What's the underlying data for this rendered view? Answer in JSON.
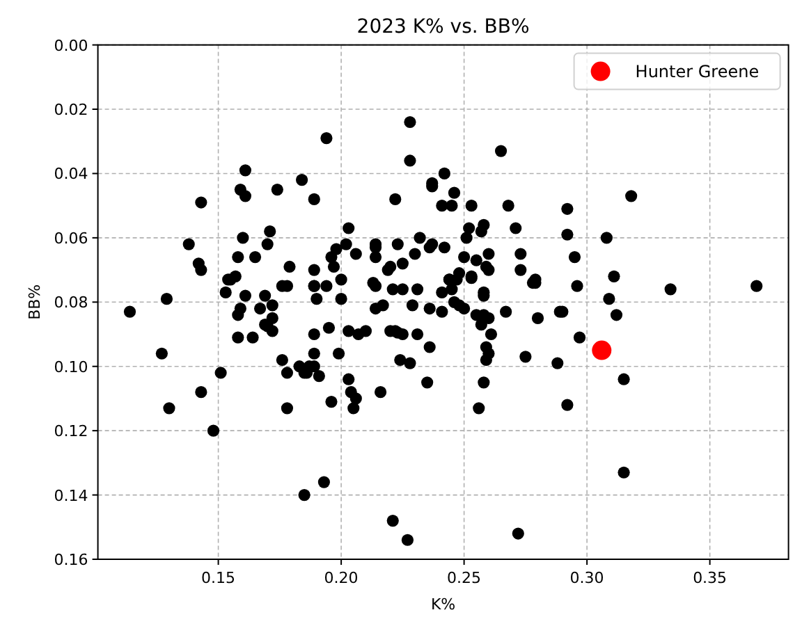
{
  "chart_data": {
    "type": "scatter",
    "title": "2023 K% vs. BB%",
    "xlabel": "K%",
    "ylabel": "BB%",
    "xlim": [
      0.101,
      0.382
    ],
    "ylim": [
      0.16,
      0
    ],
    "xticks": [
      {
        "value": 0.15,
        "label": "0.15"
      },
      {
        "value": 0.2,
        "label": "0.20"
      },
      {
        "value": 0.25,
        "label": "0.25"
      },
      {
        "value": 0.3,
        "label": "0.30"
      },
      {
        "value": 0.35,
        "label": "0.35"
      }
    ],
    "yticks": [
      {
        "value": 0,
        "label": "0.00"
      },
      {
        "value": 0.02,
        "label": "0.02"
      },
      {
        "value": 0.04,
        "label": "0.04"
      },
      {
        "value": 0.06,
        "label": "0.06"
      },
      {
        "value": 0.08,
        "label": "0.08"
      },
      {
        "value": 0.1,
        "label": "0.10"
      },
      {
        "value": 0.12,
        "label": "0.12"
      },
      {
        "value": 0.14,
        "label": "0.14"
      },
      {
        "value": 0.16,
        "label": "0.16"
      }
    ],
    "grid": true,
    "legend": "top right",
    "marker": "circle",
    "series": [
      {
        "color": "#000000",
        "x": [
          0.194,
          0.161,
          0.159,
          0.161,
          0.143,
          0.174,
          0.184,
          0.189,
          0.171,
          0.16,
          0.17,
          0.138,
          0.158,
          0.165,
          0.179,
          0.142,
          0.143,
          0.189,
          0.155,
          0.157,
          0.178,
          0.189,
          0.194,
          0.228,
          0.228,
          0.265,
          0.242,
          0.237,
          0.237,
          0.246,
          0.222,
          0.241,
          0.245,
          0.253,
          0.268,
          0.292,
          0.203,
          0.202,
          0.252,
          0.258,
          0.257,
          0.271,
          0.292,
          0.214,
          0.214,
          0.223,
          0.232,
          0.236,
          0.237,
          0.242,
          0.251,
          0.198,
          0.196,
          0.197,
          0.206,
          0.214,
          0.23,
          0.225,
          0.219,
          0.22,
          0.213,
          0.214,
          0.2,
          0.25,
          0.255,
          0.26,
          0.259,
          0.26,
          0.273,
          0.273,
          0.279,
          0.278,
          0.295,
          0.253,
          0.248,
          0.247,
          0.244,
          0.318,
          0.308,
          0.311,
          0.296,
          0.334,
          0.369,
          0.309,
          0.312,
          0.29,
          0.297,
          0.315,
          0.292,
          0.315,
          0.2,
          0.221,
          0.225,
          0.231,
          0.241,
          0.241,
          0.244,
          0.245,
          0.253,
          0.258,
          0.258,
          0.279,
          0.214,
          0.217,
          0.229,
          0.236,
          0.246,
          0.248,
          0.25,
          0.255,
          0.258,
          0.26,
          0.257,
          0.267,
          0.28,
          0.289,
          0.195,
          0.203,
          0.207,
          0.21,
          0.22,
          0.222,
          0.223,
          0.225,
          0.231,
          0.236,
          0.261,
          0.259,
          0.26,
          0.259,
          0.275,
          0.288,
          0.199,
          0.224,
          0.228,
          0.203,
          0.204,
          0.206,
          0.205,
          0.216,
          0.196,
          0.235,
          0.258,
          0.256,
          0.221,
          0.227,
          0.272,
          0.114,
          0.129,
          0.127,
          0.13,
          0.143,
          0.148,
          0.151,
          0.154,
          0.153,
          0.161,
          0.159,
          0.158,
          0.158,
          0.164,
          0.169,
          0.172,
          0.169,
          0.17,
          0.172,
          0.176,
          0.178,
          0.178,
          0.172,
          0.176,
          0.167,
          0.183,
          0.185,
          0.186,
          0.187,
          0.189,
          0.191,
          0.189,
          0.19,
          0.189,
          0.189,
          0.185,
          0.193
        ],
        "values": [
          0.029,
          0.039,
          0.045,
          0.047,
          0.049,
          0.045,
          0.042,
          0.048,
          0.058,
          0.06,
          0.062,
          0.062,
          0.066,
          0.066,
          0.069,
          0.068,
          0.07,
          0.07,
          0.073,
          0.072,
          0.075,
          0.075,
          0.075,
          0.024,
          0.036,
          0.033,
          0.04,
          0.043,
          0.044,
          0.046,
          0.048,
          0.05,
          0.05,
          0.05,
          0.05,
          0.051,
          0.057,
          0.062,
          0.057,
          0.056,
          0.058,
          0.057,
          0.059,
          0.062,
          0.063,
          0.062,
          0.06,
          0.063,
          0.062,
          0.063,
          0.06,
          0.0635,
          0.066,
          0.069,
          0.065,
          0.066,
          0.065,
          0.068,
          0.07,
          0.069,
          0.074,
          0.075,
          0.073,
          0.066,
          0.067,
          0.065,
          0.069,
          0.07,
          0.065,
          0.07,
          0.073,
          0.074,
          0.066,
          0.072,
          0.071,
          0.073,
          0.073,
          0.047,
          0.06,
          0.072,
          0.075,
          0.076,
          0.075,
          0.079,
          0.084,
          0.083,
          0.091,
          0.104,
          0.112,
          0.133,
          0.079,
          0.076,
          0.076,
          0.076,
          0.077,
          0.083,
          0.073,
          0.076,
          0.0725,
          0.077,
          0.078,
          0.074,
          0.082,
          0.081,
          0.081,
          0.082,
          0.08,
          0.081,
          0.082,
          0.084,
          0.084,
          0.085,
          0.087,
          0.083,
          0.085,
          0.083,
          0.088,
          0.089,
          0.09,
          0.089,
          0.089,
          0.089,
          0.0895,
          0.09,
          0.09,
          0.094,
          0.09,
          0.094,
          0.096,
          0.098,
          0.097,
          0.099,
          0.096,
          0.098,
          0.099,
          0.104,
          0.108,
          0.11,
          0.113,
          0.108,
          0.111,
          0.105,
          0.105,
          0.113,
          0.148,
          0.154,
          0.152,
          0.083,
          0.079,
          0.096,
          0.113,
          0.108,
          0.12,
          0.102,
          0.073,
          0.077,
          0.078,
          0.082,
          0.084,
          0.091,
          0.091,
          0.078,
          0.081,
          0.087,
          0.0875,
          0.089,
          0.098,
          0.102,
          0.113,
          0.085,
          0.075,
          0.082,
          0.1,
          0.102,
          0.102,
          0.1,
          0.1,
          0.103,
          0.075,
          0.079,
          0.09,
          0.096,
          0.14,
          0.136
        ]
      },
      {
        "name": "Hunter Greene",
        "color": "#ff0000",
        "x": [
          0.306
        ],
        "values": [
          0.095
        ]
      }
    ]
  }
}
